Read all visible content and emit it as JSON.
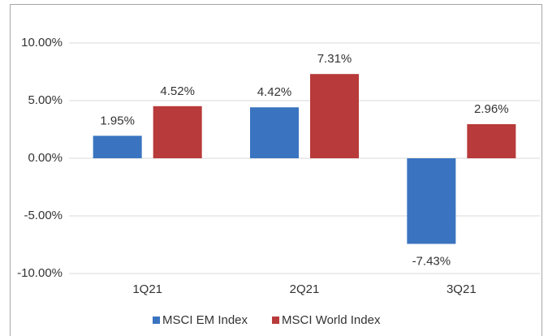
{
  "chart_data": {
    "type": "bar",
    "categories": [
      "1Q21",
      "2Q21",
      "3Q21"
    ],
    "series": [
      {
        "name": "MSCI EM Index",
        "color": "#3a74c0",
        "values": [
          1.95,
          4.42,
          -7.43
        ],
        "value_labels": [
          "1.95%",
          "4.42%",
          "-7.43%"
        ]
      },
      {
        "name": "MSCI World Index",
        "color": "#b83a3a",
        "values": [
          4.52,
          7.31,
          2.96
        ],
        "value_labels": [
          "4.52%",
          "7.31%",
          "2.96%"
        ]
      }
    ],
    "ylim": [
      -10,
      10
    ],
    "yticks": [
      {
        "value": -10,
        "label": "-10.00%"
      },
      {
        "value": -5,
        "label": "-5.00%"
      },
      {
        "value": 0,
        "label": "0.00%"
      },
      {
        "value": 5,
        "label": "5.00%"
      },
      {
        "value": 10,
        "label": "10.00%"
      }
    ],
    "grid": true,
    "legend": "bottom"
  }
}
